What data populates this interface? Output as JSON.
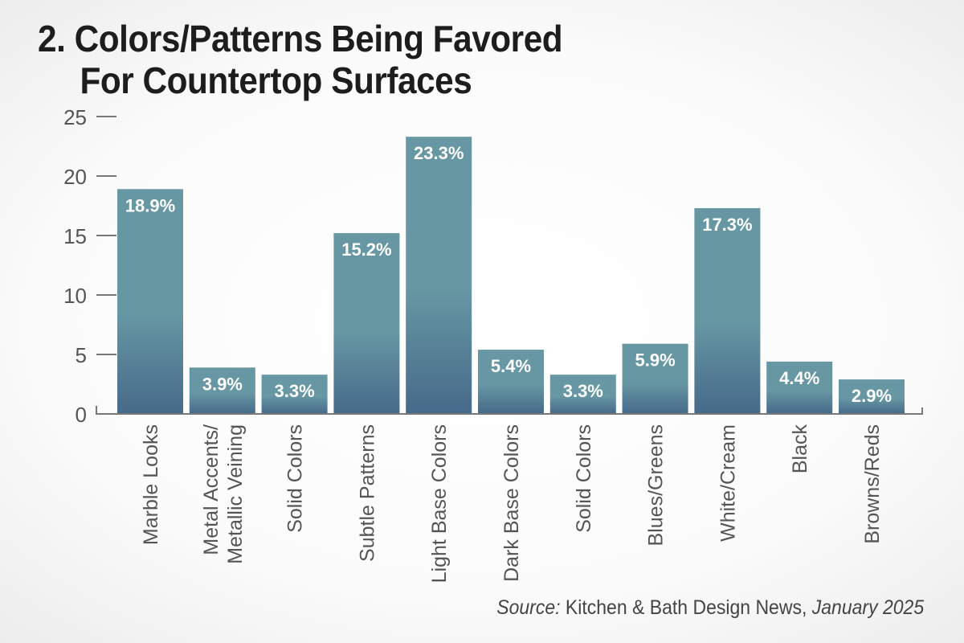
{
  "title": {
    "line1": "2. Colors/Patterns Being Favored",
    "line2": "For Countertop Surfaces"
  },
  "source": {
    "prefix": "Source:",
    "publication": " Kitchen & Bath Design News,",
    "date": " January 2025"
  },
  "colors": {
    "bar_top": "#6797a3",
    "bar_bottom": "#466a8a",
    "axis": "#777777",
    "tick_label": "#555555",
    "value_label": "#ffffff"
  },
  "chart_data": {
    "type": "bar",
    "title": "2. Colors/Patterns Being Favored For Countertop Surfaces",
    "xlabel": "",
    "ylabel": "",
    "ylim": [
      0,
      25
    ],
    "yticks": [
      0,
      5,
      10,
      15,
      20,
      25
    ],
    "grid": false,
    "legend": "none",
    "categories": [
      [
        "Marble Looks"
      ],
      [
        "Metal Accents/",
        "Metallic Veining"
      ],
      [
        "Solid Colors"
      ],
      [
        "Subtle Patterns"
      ],
      [
        "Light Base Colors"
      ],
      [
        "Dark Base Colors"
      ],
      [
        "Solid Colors"
      ],
      [
        "Blues/Greens"
      ],
      [
        "White/Cream"
      ],
      [
        "Black"
      ],
      [
        "Browns/Reds"
      ]
    ],
    "values": [
      18.9,
      3.9,
      3.3,
      15.2,
      23.3,
      5.4,
      3.3,
      5.9,
      17.3,
      4.4,
      2.9
    ],
    "value_labels": [
      "18.9%",
      "3.9%",
      "3.3%",
      "15.2%",
      "23.3%",
      "5.4%",
      "3.3%",
      "5.9%",
      "17.3%",
      "4.4%",
      "2.9%"
    ],
    "source": "Source: Kitchen & Bath Design News, January 2025"
  }
}
